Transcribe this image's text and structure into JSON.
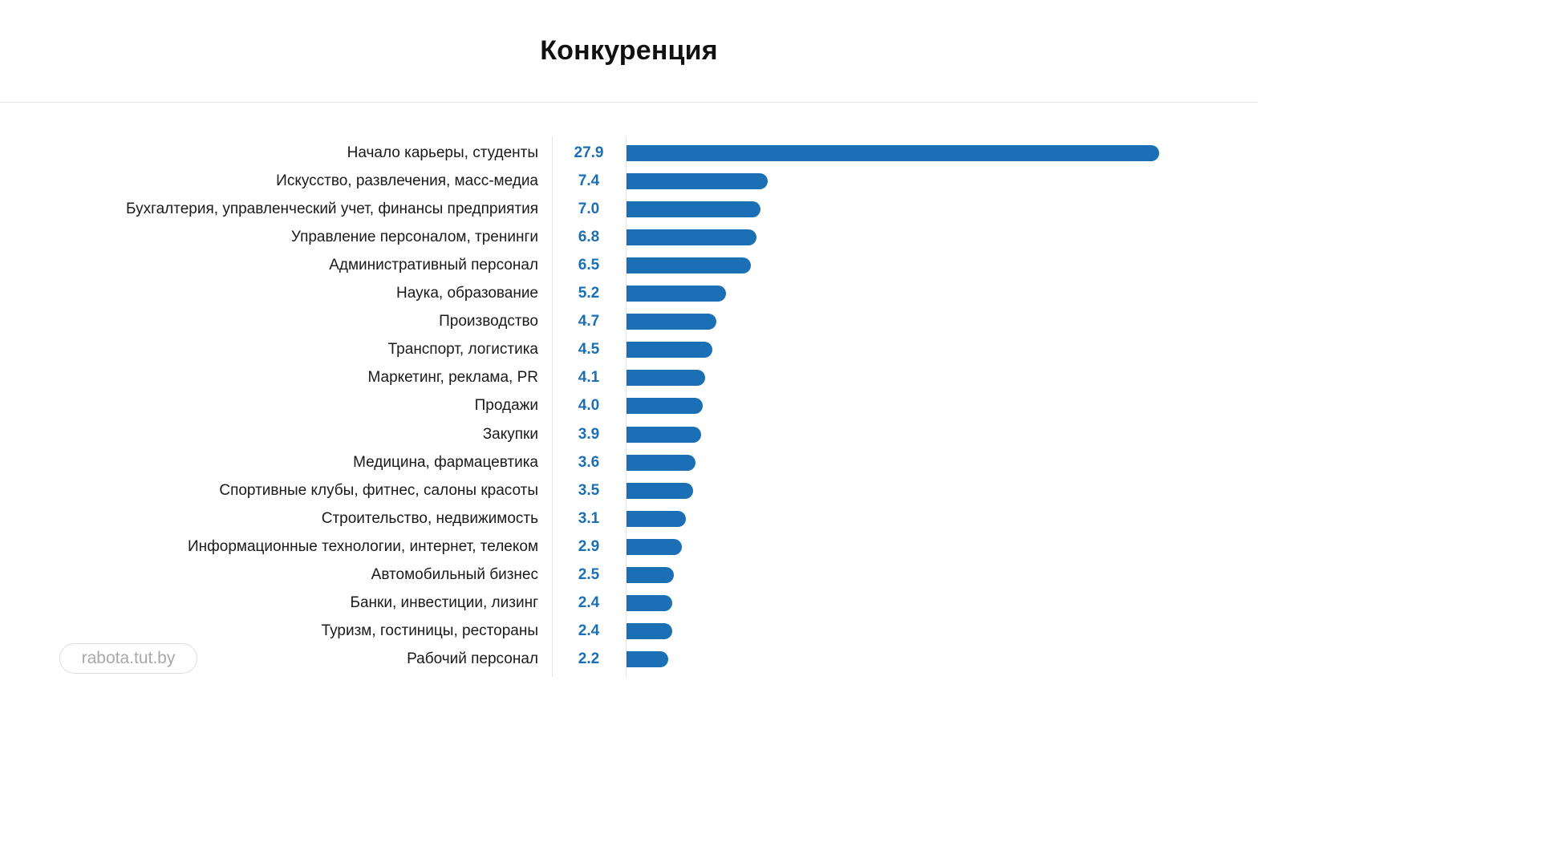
{
  "header": {
    "title": "Конкуренция"
  },
  "watermark": {
    "text": "rabota.tut.by"
  },
  "colors": {
    "bar": "#1a6fb5",
    "value_text": "#1a6fb5"
  },
  "chart_data": {
    "type": "bar",
    "orientation": "horizontal",
    "title": "Конкуренция",
    "xlim": [
      0,
      27.9
    ],
    "grid": false,
    "categories": [
      "Начало карьеры, студенты",
      "Искусство, развлечения, масс-медиа",
      "Бухгалтерия, управленческий учет, финансы предприятия",
      "Управление персоналом, тренинги",
      "Административный персонал",
      "Наука, образование",
      "Производство",
      "Транспорт, логистика",
      "Маркетинг, реклама, PR",
      "Продажи",
      "Закупки",
      "Медицина, фармацевтика",
      "Спортивные клубы, фитнес, салоны красоты",
      "Строительство, недвижимость",
      "Информационные технологии, интернет, телеком",
      "Автомобильный бизнес",
      "Банки, инвестиции, лизинг",
      "Туризм, гостиницы, рестораны",
      "Рабочий персонал"
    ],
    "values": [
      27.9,
      7.4,
      7.0,
      6.8,
      6.5,
      5.2,
      4.7,
      4.5,
      4.1,
      4.0,
      3.9,
      3.6,
      3.5,
      3.1,
      2.9,
      2.5,
      2.4,
      2.4,
      2.2
    ],
    "value_labels": [
      "27.9",
      "7.4",
      "7.0",
      "6.8",
      "6.5",
      "5.2",
      "4.7",
      "4.5",
      "4.1",
      "4.0",
      "3.9",
      "3.6",
      "3.5",
      "3.1",
      "2.9",
      "2.5",
      "2.4",
      "2.4",
      "2.2"
    ]
  }
}
